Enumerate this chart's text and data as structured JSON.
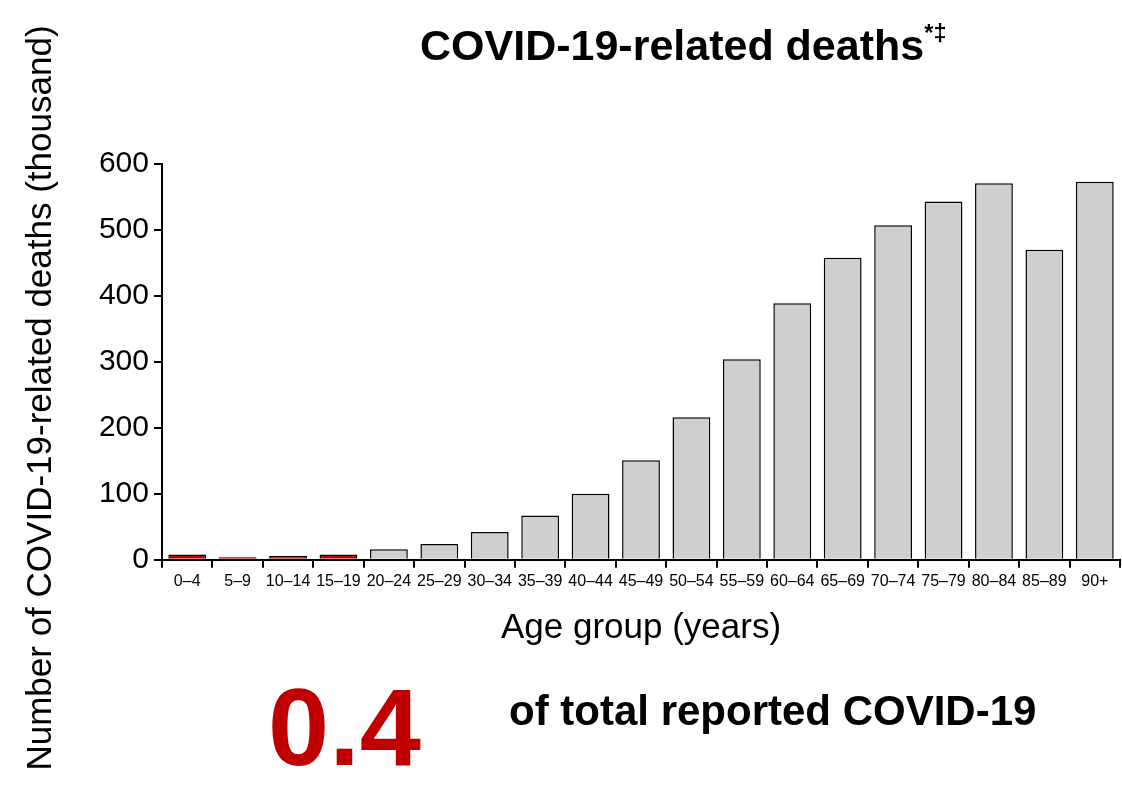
{
  "chart_data": {
    "type": "bar",
    "title": "COVID-19-related deaths$^{*‡}$",
    "xlabel": "Age group (years)",
    "ylabel": "Number of COVID-19-related deaths (thousand)",
    "categories": [
      "0–4",
      "5–9",
      "10–14",
      "15–19",
      "20–24",
      "25–29",
      "30–34",
      "35–39",
      "40–44",
      "45–49",
      "50–54",
      "55–59",
      "60–64",
      "65–69",
      "70–74",
      "75–79",
      "80–84",
      "85–89",
      "90+"
    ],
    "values": [
      8,
      4,
      6,
      8,
      16,
      24,
      42,
      67,
      100,
      151,
      216,
      304,
      389,
      458,
      507,
      543,
      571,
      470,
      573
    ],
    "colors": [
      "#c00000",
      "#c00000",
      "#c00000",
      "#c00000",
      "#d0cfd0",
      "#d0cfd0",
      "#d0cfd0",
      "#d0cfd0",
      "#d0cfd0",
      "#d0cfd0",
      "#d0cfd0",
      "#d0cfd0",
      "#d0cfd0",
      "#d0cfd0",
      "#d0cfd0",
      "#d0cfd0",
      "#d0cfd0",
      "#d0cfd0",
      "#d0cfd0"
    ],
    "ylim": [
      0,
      600
    ],
    "yticks": [
      0,
      100,
      200,
      300,
      400,
      500,
      600
    ],
    "grid": false,
    "annotations": [
      "0.4",
      "of total reported COVID-19"
    ]
  }
}
